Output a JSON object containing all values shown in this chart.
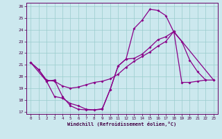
{
  "xlabel": "Windchill (Refroidissement éolien,°C)",
  "bg_color": "#cce8ee",
  "line_color": "#880088",
  "grid_color": "#99cccc",
  "x_ticks": [
    0,
    1,
    2,
    3,
    4,
    5,
    6,
    7,
    8,
    9,
    10,
    11,
    12,
    13,
    14,
    15,
    16,
    17,
    18,
    19,
    20,
    21,
    22,
    23
  ],
  "ylim": [
    17,
    26
  ],
  "yticks": [
    17,
    18,
    19,
    20,
    21,
    22,
    23,
    24,
    25,
    26
  ],
  "series1_x": [
    0,
    1,
    2,
    3,
    4,
    5,
    6,
    7,
    8,
    9,
    10,
    11,
    12,
    13,
    14,
    15,
    16,
    17,
    18,
    19,
    20,
    21,
    22
  ],
  "series1_y": [
    21.2,
    20.6,
    19.6,
    19.7,
    18.3,
    17.5,
    17.2,
    17.15,
    17.15,
    17.2,
    18.9,
    20.9,
    21.5,
    24.1,
    24.8,
    25.75,
    25.65,
    25.2,
    23.8,
    23.0,
    21.4,
    20.4,
    19.7
  ],
  "series2_x": [
    0,
    1,
    2,
    3,
    4,
    5,
    6,
    7,
    8,
    9,
    10,
    11,
    12,
    13,
    14,
    15,
    16,
    17,
    18,
    23
  ],
  "series2_y": [
    21.2,
    20.6,
    19.7,
    19.6,
    19.2,
    19.0,
    19.1,
    19.3,
    19.5,
    19.6,
    19.8,
    20.2,
    20.8,
    21.3,
    21.7,
    22.1,
    22.6,
    23.0,
    23.85,
    19.7
  ],
  "series3_x": [
    0,
    2,
    3,
    4,
    5,
    6,
    7,
    8,
    9,
    10,
    11,
    12,
    13,
    14,
    15,
    16,
    17,
    18,
    19,
    20,
    21,
    22,
    23
  ],
  "series3_y": [
    21.2,
    19.6,
    18.3,
    18.15,
    17.7,
    17.5,
    17.2,
    17.15,
    17.25,
    18.9,
    20.9,
    21.5,
    21.55,
    21.9,
    22.5,
    23.15,
    23.4,
    23.85,
    19.5,
    19.5,
    19.6,
    19.7,
    19.7
  ]
}
